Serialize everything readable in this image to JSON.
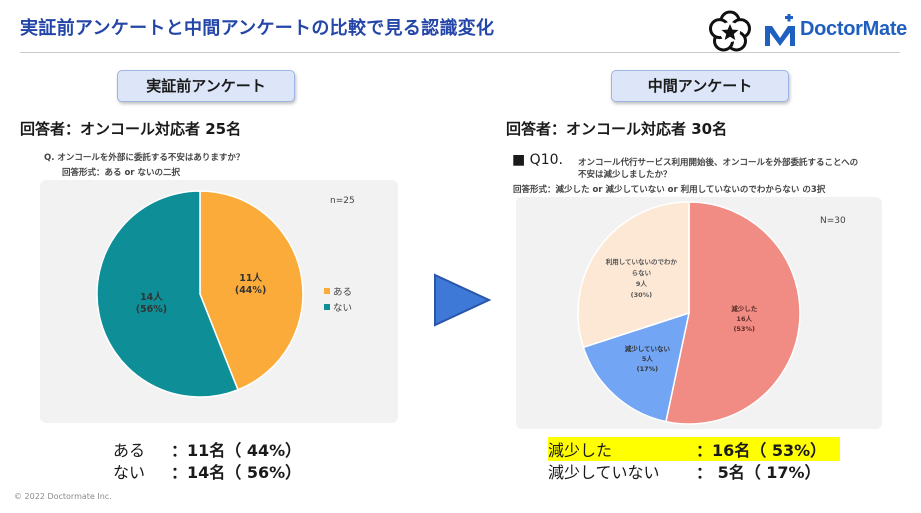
{
  "header": {
    "title": "実証前アンケートと中間アンケートの比較で見る認識変化",
    "brand_name": "DoctorMate",
    "brand_color": "#1f5fbf",
    "title_color": "#2446a8"
  },
  "left": {
    "section_label": "実証前アンケート",
    "respondents": "回答者：オンコール対応者 25名",
    "question": "Q.  オンコールを外部に委託する不安はありますか？",
    "answer_format": "回答形式：ある or ないの二択",
    "n_label": "n=25",
    "legend": [
      {
        "label": "ある",
        "color": "#fbab3a"
      },
      {
        "label": "ない",
        "color": "#0e8f98"
      }
    ],
    "summary": [
      {
        "label": "ある",
        "value": "：11名（ 44%）"
      },
      {
        "label": "ない",
        "value": "：14名（ 56%）"
      }
    ]
  },
  "right": {
    "section_label": "中間アンケート",
    "respondents": "回答者：オンコール対応者 30名",
    "question_lead": "■ Q10.",
    "question_line1": "オンコール代行サービス利用開始後、オンコールを外部委託することへの",
    "question_line2": "不安は減少しましたか？",
    "answer_format": "回答形式：減少した or 減少していない or 利用していないのでわからない の3択",
    "n_label": "N=30",
    "summary": [
      {
        "label": "減少した",
        "value": "：16名（ 53%）",
        "highlight": "#ffff00"
      },
      {
        "label": "減少していない",
        "value": "：  5名（ 17%）"
      }
    ]
  },
  "chart_data": [
    {
      "type": "pie",
      "title": "",
      "slices": [
        {
          "label": "ある",
          "count_label": "11人",
          "pct_label": "(44%)",
          "value": 11,
          "percent": 44,
          "color": "#fbab3a"
        },
        {
          "label": "ない",
          "count_label": "14人",
          "pct_label": "(56%)",
          "value": 14,
          "percent": 56,
          "color": "#0e8f98"
        }
      ],
      "legend": "right"
    },
    {
      "type": "pie",
      "title": "",
      "slices": [
        {
          "label": "減少した",
          "count_label": "16人",
          "pct_label": "(53%)",
          "value": 16,
          "percent": 53,
          "color": "#f08c84"
        },
        {
          "label": "減少していない",
          "count_label": "5人",
          "pct_label": "(17%)",
          "value": 5,
          "percent": 17,
          "color": "#72a5f4"
        },
        {
          "label": "利用していないのでわからない",
          "label_line1": "利用していないのでわか",
          "label_line2": "らない",
          "count_label": "9人",
          "pct_label": "(30%)",
          "value": 9,
          "percent": 30,
          "color": "#fde8d5"
        }
      ],
      "legend": "none"
    }
  ],
  "footer": {
    "copyright": "© 2022 Doctormate Inc."
  }
}
